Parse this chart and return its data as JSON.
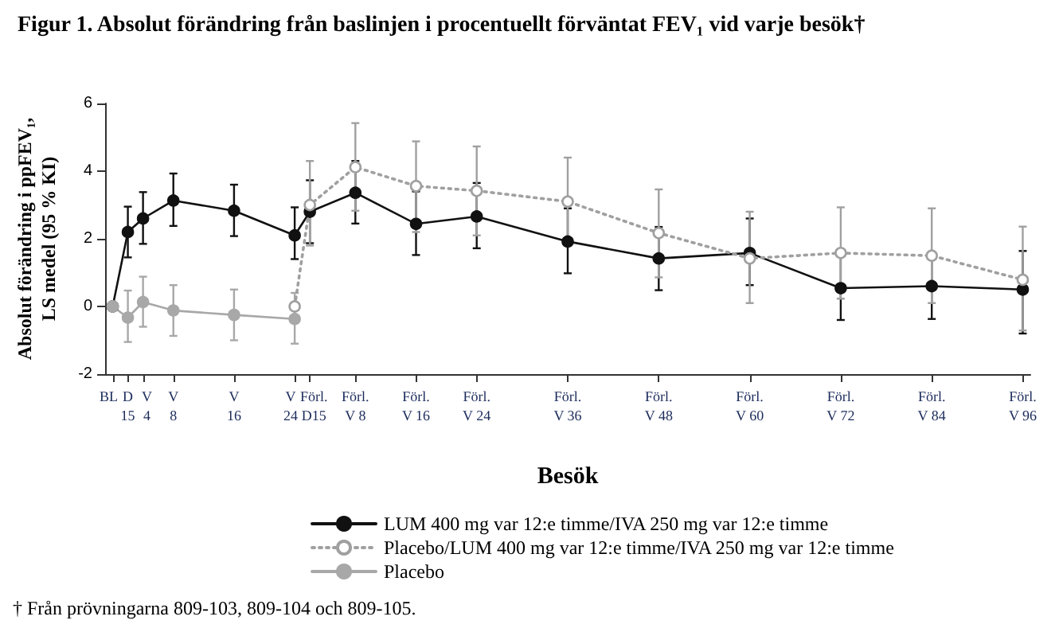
{
  "chart_data": {
    "type": "line",
    "title": "Figur 1. Absolut förändring från baslinjen i procentuellt förväntat FEV₁ vid varje besök†",
    "xlabel": "Besök",
    "ylabel": "Absolut förändring i ppFEV₁,\nLS medel (95 % KI)",
    "categories": [
      "BL",
      "D\n15",
      "V\n4",
      null,
      "V\n8",
      null,
      null,
      null,
      "V\n16",
      null,
      null,
      null,
      "V\n24",
      "Förl.\nD15",
      null,
      null,
      "Förl.\nV 8",
      null,
      null,
      null,
      "Förl.\nV 16",
      null,
      null,
      null,
      "Förl.\nV 24",
      null,
      null,
      null,
      null,
      null,
      "Förl.\nV 36",
      null,
      null,
      null,
      null,
      null,
      "Förl.\nV 48",
      null,
      null,
      null,
      null,
      null,
      "Förl.\nV 60",
      null,
      null,
      null,
      null,
      null,
      "Förl.\nV 72",
      null,
      null,
      null,
      null,
      null,
      "Förl.\nV 84",
      null,
      null,
      null,
      null,
      null,
      "Förl.\nV 96"
    ],
    "ylim": [
      -2,
      6
    ],
    "yticks": [
      -2,
      0,
      2,
      4,
      6
    ],
    "grid": false,
    "legend": "bottom",
    "marker": "circle",
    "series": [
      {
        "name": "LUM 400 mg var 12:e timme/IVA 250 mg var 12:e timme",
        "color": "#111111",
        "line_style": "solid",
        "x": [
          "BL",
          "D\n15",
          "V\n4",
          "V\n8",
          "V\n16",
          "V\n24",
          "Förl.\nD15",
          "Förl.\nV 8",
          "Förl.\nV 16",
          "Förl.\nV 24",
          "Förl.\nV 36",
          "Förl.\nV 48",
          "Förl.\nV 60",
          "Förl.\nV 72",
          "Förl.\nV 84",
          "Förl.\nV 96"
        ],
        "values": [
          0,
          2.2,
          2.6,
          3.13,
          2.83,
          2.1,
          2.8,
          3.36,
          2.44,
          2.66,
          1.92,
          1.42,
          1.58,
          0.54,
          0.6,
          0.5
        ],
        "errors": [
          null,
          [
            1.45,
            2.95
          ],
          [
            1.85,
            3.38
          ],
          [
            2.38,
            3.93
          ],
          [
            2.08,
            3.6
          ],
          [
            1.4,
            2.93
          ],
          [
            1.87,
            3.73
          ],
          [
            2.45,
            4.3
          ],
          [
            1.52,
            3.4
          ],
          [
            1.72,
            3.65
          ],
          [
            0.98,
            2.9
          ],
          [
            0.48,
            2.35
          ],
          [
            0.63,
            2.6
          ],
          [
            -0.4,
            1.5
          ],
          [
            -0.37,
            1.55
          ],
          [
            -0.8,
            1.64
          ]
        ]
      },
      {
        "name": "Placebo/LUM 400 mg var 12:e timme/IVA 250 mg var 12:e timme",
        "color": "#a0a0a0",
        "line_style": "dotted",
        "x": [
          "V\n24",
          "Förl.\nD15",
          "Förl.\nV 8",
          "Förl.\nV 16",
          "Förl.\nV 24",
          "Förl.\nV 36",
          "Förl.\nV 48",
          "Förl.\nV 60",
          "Förl.\nV 72",
          "Förl.\nV 84",
          "Förl.\nV 96"
        ],
        "values": [
          0,
          3.0,
          4.12,
          3.56,
          3.42,
          3.1,
          2.17,
          1.42,
          1.58,
          1.5,
          0.79
        ],
        "errors": [
          null,
          [
            1.8,
            4.3
          ],
          [
            2.83,
            5.42
          ],
          [
            2.2,
            4.88
          ],
          [
            2.1,
            4.73
          ],
          [
            1.8,
            4.4
          ],
          [
            0.86,
            3.46
          ],
          [
            0.1,
            2.8
          ],
          [
            0.23,
            2.93
          ],
          [
            0.1,
            2.9
          ],
          [
            -0.71,
            2.36
          ]
        ]
      },
      {
        "name": "Placebo",
        "color": "#a8a8a8",
        "line_style": "solid",
        "x": [
          "BL",
          "D\n15",
          "V\n4",
          "V\n8",
          "V\n16",
          "V\n24"
        ],
        "values": [
          0,
          -0.33,
          0.13,
          -0.12,
          -0.25,
          -0.37
        ],
        "errors": [
          null,
          [
            -1.05,
            0.47
          ],
          [
            -0.6,
            0.88
          ],
          [
            -0.87,
            0.63
          ],
          [
            -1.0,
            0.5
          ],
          [
            -1.1,
            0.4
          ]
        ]
      }
    ],
    "annotations": [
      "† Från prövningarna 809-103, 809-104 och 809-105."
    ]
  }
}
